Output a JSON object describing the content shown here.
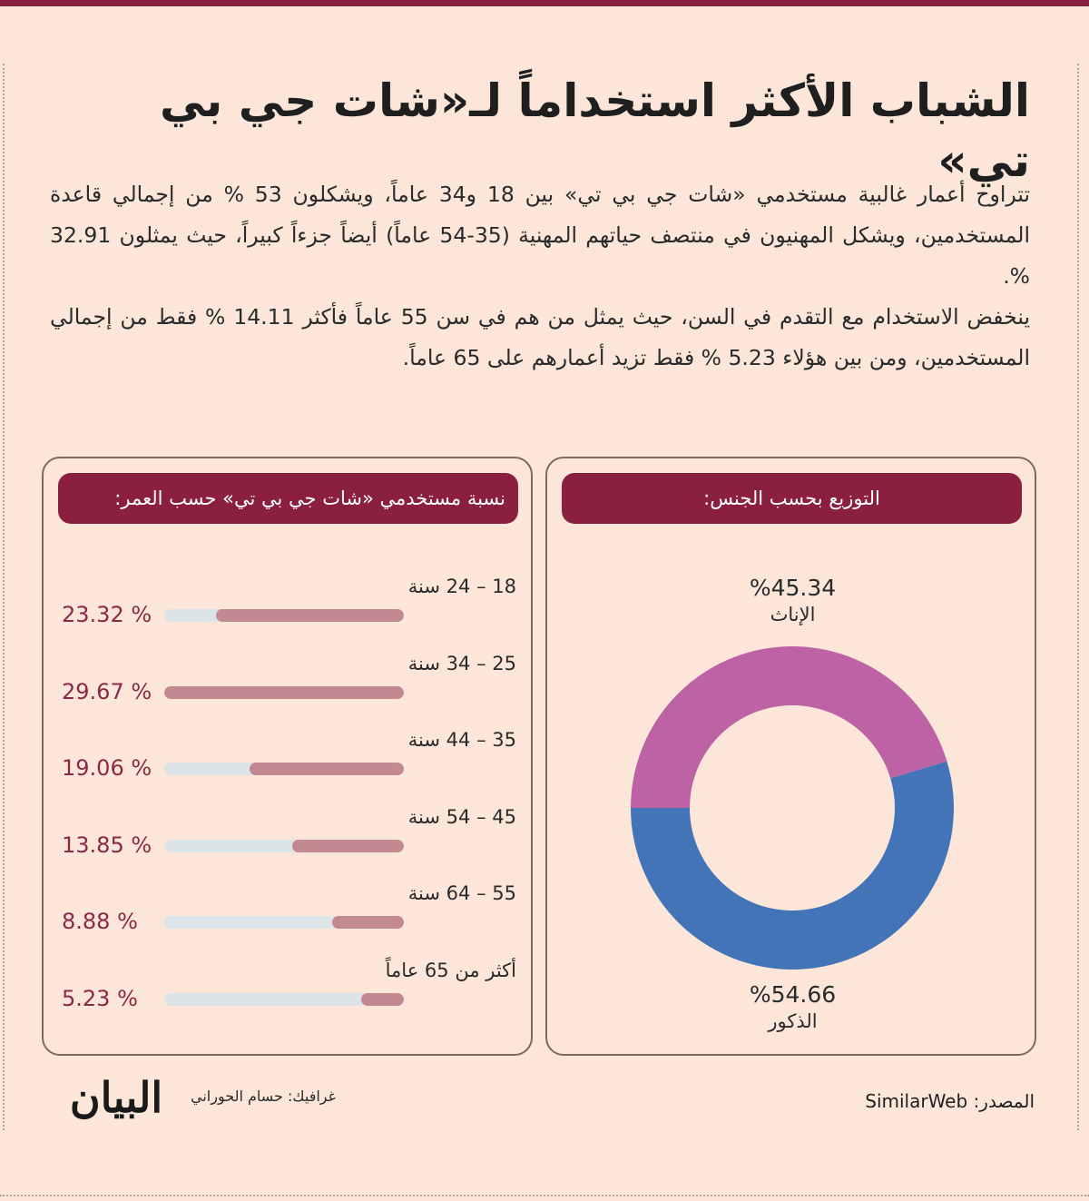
{
  "headline": "الشباب الأكثر استخداماً لـ«شات جي بي تي»",
  "paragraphs": [
    "تتراوح أعمار غالبية مستخدمي «شات جي بي تي» بين 18 و34 عاماً، ويشكلون 53 % من إجمالي قاعدة المستخدمين، ويشكل المهنيون في منتصف حياتهم المهنية (35-54 عاماً) أيضاً جزءاً كبيراً، حيث يمثلون 32.91 %.",
    "ينخفض الاستخدام مع التقدم في السن، حيث يمثل من هم في سن 55 عاماً فأكثر 14.11 % فقط من إجمالي المستخدمين، ومن بين هؤلاء 5.23 % فقط تزيد أعمارهم على 65 عاماً."
  ],
  "colors": {
    "brand": "#8a1f40",
    "background": "#fce6d9",
    "bar_fill": "#c38991",
    "bar_track": "#dde4e8",
    "female": "#bd62a5",
    "male": "#4474b8"
  },
  "chart_data": [
    {
      "type": "bar",
      "orientation": "horizontal",
      "title": "نسبة مستخدمي «شات جي بي تي» حسب العمر:",
      "categories": [
        "18 – 24 سنة",
        "25 – 34 سنة",
        "35 – 44 سنة",
        "45 – 54 سنة",
        "55 – 64 سنة",
        "أكثر من 65 عاماً"
      ],
      "values": [
        23.32,
        29.67,
        19.06,
        13.85,
        8.88,
        5.23
      ],
      "value_labels": [
        "% 23.32",
        "% 29.67",
        "% 19.06",
        "% 13.85",
        "% 8.88",
        "% 5.23"
      ],
      "xlim": [
        0,
        29.67
      ]
    },
    {
      "type": "pie",
      "style": "donut",
      "title": "التوزيع بحسب الجنس:",
      "slices": [
        {
          "name": "الإناث",
          "value": 45.34,
          "label": "%45.34",
          "color": "#bd62a5"
        },
        {
          "name": "الذكور",
          "value": 54.66,
          "label": "%54.66",
          "color": "#4474b8"
        }
      ]
    }
  ],
  "footer": {
    "logo": "البيان",
    "credit": "غرافيك: حسام الحوراني",
    "source": "المصدر: SimilarWeb"
  }
}
